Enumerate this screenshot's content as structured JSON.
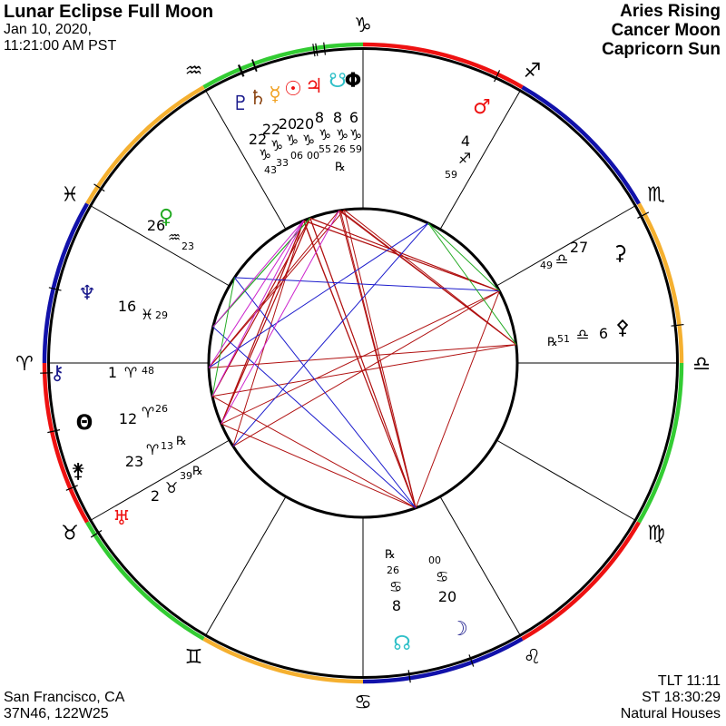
{
  "header": {
    "title": "Lunar Eclipse Full Moon",
    "date": "Jan 10, 2020,",
    "time": "11:21:00 AM PST"
  },
  "summary": [
    "Aries Rising",
    "Cancer Moon",
    "Capricorn Sun"
  ],
  "location": [
    "San Francisco, CA",
    "37N46, 122W25"
  ],
  "info": [
    "TLT 11:11",
    "ST 18:30:29",
    "Natural Houses"
  ],
  "zodiac": [
    {
      "name": "aries",
      "glyph": "♈",
      "element": "fire"
    },
    {
      "name": "taurus",
      "glyph": "♉",
      "element": "earth"
    },
    {
      "name": "gemini",
      "glyph": "♊",
      "element": "air"
    },
    {
      "name": "cancer",
      "glyph": "♋",
      "element": "water"
    },
    {
      "name": "leo",
      "glyph": "♌",
      "element": "fire"
    },
    {
      "name": "virgo",
      "glyph": "♍",
      "element": "earth"
    },
    {
      "name": "libra",
      "glyph": "♎",
      "element": "air"
    },
    {
      "name": "scorpio",
      "glyph": "♏",
      "element": "water"
    },
    {
      "name": "sagittarius",
      "glyph": "♐",
      "element": "fire"
    },
    {
      "name": "capricorn",
      "glyph": "♑",
      "element": "earth"
    },
    {
      "name": "aquarius",
      "glyph": "♒",
      "element": "air"
    },
    {
      "name": "pisces",
      "glyph": "♓",
      "element": "water"
    }
  ],
  "element_colors": {
    "fire": "#ee1111",
    "earth": "#33cc33",
    "air": "#f5b030",
    "water": "#1111aa"
  },
  "retrograde_symbol": "℞",
  "bodies": [
    {
      "id": "pluto",
      "glyph": "♇",
      "color": "#1a1a8c",
      "deg": "22",
      "sign": 9,
      "min": "43",
      "rx": false
    },
    {
      "id": "saturn",
      "glyph": "♄",
      "color": "#8b4513",
      "deg": "22",
      "sign": 9,
      "min": "33",
      "rx": false
    },
    {
      "id": "mercury",
      "glyph": "☿",
      "color": "#f0a020",
      "deg": "20",
      "sign": 9,
      "min": "06",
      "rx": false
    },
    {
      "id": "sun",
      "glyph": "☉",
      "color": "#ee1111",
      "deg": "20",
      "sign": 9,
      "min": "00",
      "rx": false
    },
    {
      "id": "jupiter",
      "glyph": "♃",
      "color": "#ee1111",
      "deg": "8",
      "sign": 9,
      "min": "55",
      "rx": false
    },
    {
      "id": "south-node",
      "glyph": "☋",
      "color": "#30c0c8",
      "deg": "8",
      "sign": 9,
      "min": "26",
      "rx": true
    },
    {
      "id": "vertex",
      "glyph": "Φ",
      "color": "#000000",
      "deg": "6",
      "sign": 9,
      "min": "59",
      "rx": false
    },
    {
      "id": "mars",
      "glyph": "♂",
      "color": "#ee1111",
      "deg": "4",
      "sign": 8,
      "min": "59",
      "rx": false
    },
    {
      "id": "ceres",
      "glyph": "⚳",
      "color": "#000000",
      "deg": "27",
      "sign": 6,
      "min": "49",
      "rx": false
    },
    {
      "id": "pallas",
      "glyph": "⚴",
      "color": "#000000",
      "deg": "6",
      "sign": 6,
      "min": "51",
      "rx": true
    },
    {
      "id": "moon",
      "glyph": "☽",
      "color": "#1a1a8c",
      "deg": "20",
      "sign": 3,
      "min": "00",
      "rx": false
    },
    {
      "id": "north-node",
      "glyph": "☊",
      "color": "#30c0c8",
      "deg": "8",
      "sign": 3,
      "min": "26",
      "rx": true
    },
    {
      "id": "uranus",
      "glyph": "♅",
      "color": "#ee1111",
      "deg": "2",
      "sign": 1,
      "min": "39",
      "rx": true
    },
    {
      "id": "juno",
      "glyph": "⚵",
      "color": "#000000",
      "deg": "23",
      "sign": 0,
      "min": "13",
      "rx": true
    },
    {
      "id": "fortune",
      "glyph": "Θ",
      "color": "#000000",
      "deg": "12",
      "sign": 0,
      "min": "26",
      "rx": false
    },
    {
      "id": "chiron",
      "glyph": "⚷",
      "color": "#1a1a8c",
      "deg": "1",
      "sign": 0,
      "min": "48",
      "rx": false
    },
    {
      "id": "neptune",
      "glyph": "♆",
      "color": "#1a1a8c",
      "deg": "16",
      "sign": 11,
      "min": "29",
      "rx": false
    },
    {
      "id": "venus",
      "glyph": "♀",
      "color": "#22aa22",
      "deg": "26",
      "sign": 10,
      "min": "23",
      "rx": false
    }
  ],
  "aspect_colors": {
    "opposition": "#b01010",
    "square": "#b01010",
    "trine": "#1a1acc",
    "sextile": "#22aa22",
    "quincunx": "#cc22cc"
  },
  "aspects": [
    [
      "moon",
      "sun",
      "opposition"
    ],
    [
      "moon",
      "mercury",
      "opposition"
    ],
    [
      "moon",
      "saturn",
      "opposition"
    ],
    [
      "moon",
      "pluto",
      "opposition"
    ],
    [
      "moon",
      "jupiter",
      "opposition"
    ],
    [
      "moon",
      "vertex",
      "opposition"
    ],
    [
      "moon",
      "south-node",
      "opposition"
    ],
    [
      "ceres",
      "pluto",
      "square"
    ],
    [
      "ceres",
      "saturn",
      "square"
    ],
    [
      "ceres",
      "sun",
      "square"
    ],
    [
      "ceres",
      "mercury",
      "square"
    ],
    [
      "pallas",
      "jupiter",
      "square"
    ],
    [
      "pallas",
      "vertex",
      "square"
    ],
    [
      "pallas",
      "south-node",
      "square"
    ],
    [
      "juno",
      "pluto",
      "square"
    ],
    [
      "juno",
      "saturn",
      "square"
    ],
    [
      "juno",
      "sun",
      "square"
    ],
    [
      "juno",
      "mercury",
      "square"
    ],
    [
      "fortune",
      "sun",
      "square"
    ],
    [
      "fortune",
      "mercury",
      "square"
    ],
    [
      "chiron",
      "jupiter",
      "square"
    ],
    [
      "chiron",
      "vertex",
      "square"
    ],
    [
      "ceres",
      "juno",
      "opposition"
    ],
    [
      "pallas",
      "chiron",
      "opposition"
    ],
    [
      "pallas",
      "fortune",
      "opposition"
    ],
    [
      "ceres",
      "uranus",
      "opposition"
    ],
    [
      "moon",
      "juno",
      "square"
    ],
    [
      "moon",
      "fortune",
      "square"
    ],
    [
      "moon",
      "ceres",
      "square"
    ],
    [
      "uranus",
      "pluto",
      "square"
    ],
    [
      "venus",
      "ceres",
      "trine"
    ],
    [
      "moon",
      "neptune",
      "trine"
    ],
    [
      "mars",
      "chiron",
      "trine"
    ],
    [
      "mars",
      "uranus",
      "trine"
    ],
    [
      "moon",
      "venus",
      "trine"
    ],
    [
      "neptune",
      "sun",
      "sextile"
    ],
    [
      "neptune",
      "mercury",
      "sextile"
    ],
    [
      "mars",
      "pallas",
      "sextile"
    ],
    [
      "mars",
      "ceres",
      "sextile"
    ],
    [
      "venus",
      "fortune",
      "sextile"
    ],
    [
      "chiron",
      "pluto",
      "quincunx"
    ],
    [
      "fortune",
      "saturn",
      "quincunx"
    ],
    [
      "juno",
      "jupiter",
      "quincunx"
    ],
    [
      "neptune",
      "pluto",
      "quincunx"
    ]
  ]
}
